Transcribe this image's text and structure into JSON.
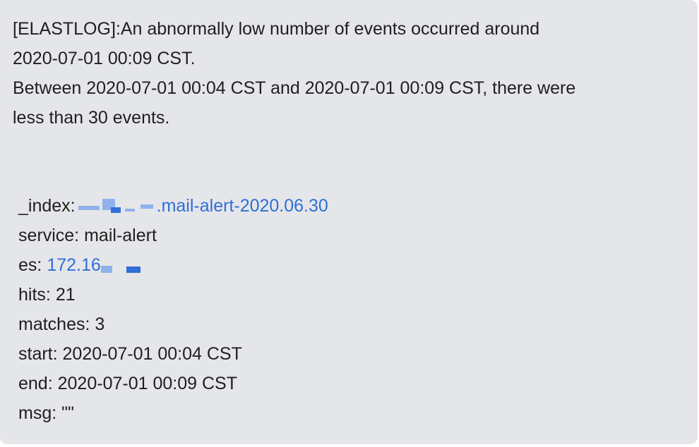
{
  "message": {
    "intro_lines": [
      "[ELASTLOG]:An abnormally low number of events occurred around",
      "2020-07-01 00:09 CST.",
      "Between 2020-07-01 00:04 CST and 2020-07-01 00:09 CST, there were",
      "less than 30 events."
    ],
    "fields": {
      "index": {
        "key": "_index:",
        "link_suffix": ".mail-alert-2020.06.30"
      },
      "service": {
        "key": "service:",
        "value": "mail-alert"
      },
      "es": {
        "key": "es:",
        "link_prefix": "172.16"
      },
      "hits": {
        "key": "hits:",
        "value": "21"
      },
      "matches": {
        "key": "matches:",
        "value": "3"
      },
      "start": {
        "key": "start:",
        "value": "2020-07-01 00:04 CST"
      },
      "end": {
        "key": "end:",
        "value": "2020-07-01 00:09 CST"
      },
      "msg": {
        "key": "msg:",
        "value": "\"\""
      }
    },
    "colors": {
      "bubble_bg": "#e5e6ea",
      "text": "#1f1f1f",
      "link": "#2f6fd6"
    }
  }
}
